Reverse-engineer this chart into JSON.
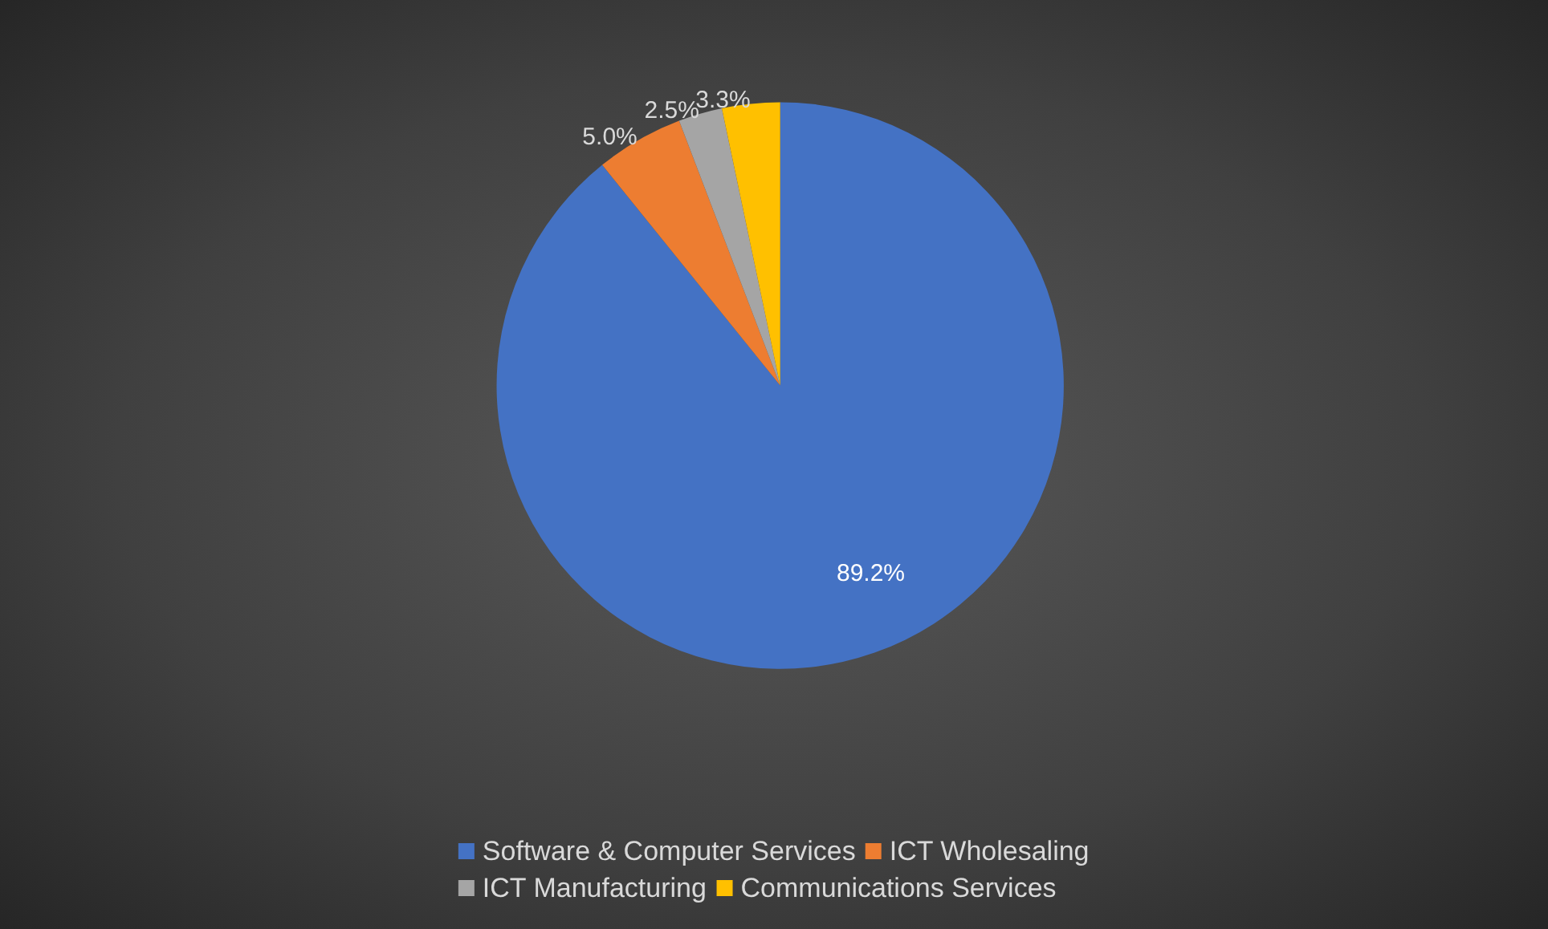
{
  "chart_data": {
    "type": "pie",
    "categories": [
      "Software & Computer Services",
      "ICT Wholesaling",
      "ICT Manufacturing",
      "Communications Services"
    ],
    "values": [
      89.2,
      5.0,
      2.5,
      3.3
    ],
    "value_labels": [
      "89.2%",
      "5.0%",
      "2.5%",
      "3.3%"
    ],
    "colors": [
      "#4472c4",
      "#ed7d31",
      "#a5a5a5",
      "#ffc000"
    ],
    "legend": "bottom"
  }
}
